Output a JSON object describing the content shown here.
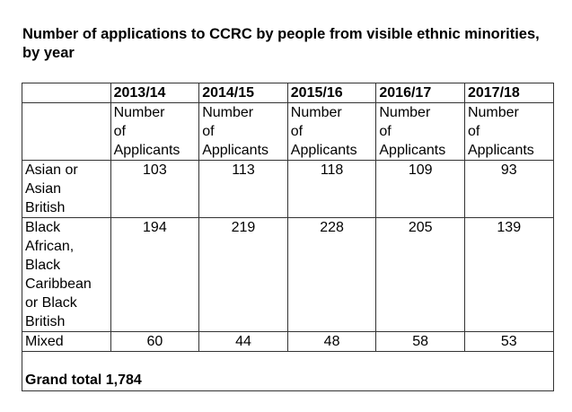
{
  "title": "Number of applications to CCRC by people from visible ethnic minorities, by year",
  "table": {
    "years": [
      "2013/14",
      "2014/15",
      "2015/16",
      "2016/17",
      "2017/18"
    ],
    "subheader": [
      "Number",
      "of",
      "Applicants"
    ],
    "rows": [
      {
        "label": [
          "Asian or",
          "Asian",
          "British"
        ],
        "values": [
          "103",
          "113",
          "118",
          "109",
          "93"
        ]
      },
      {
        "label": [
          "Black",
          "African,",
          "Black",
          "Caribbean",
          "or Black",
          "British"
        ],
        "values": [
          "194",
          "219",
          "228",
          "205",
          "139"
        ]
      },
      {
        "label": [
          "Mixed"
        ],
        "values": [
          "60",
          "44",
          "48",
          "58",
          "53"
        ]
      }
    ],
    "grand_total": "Grand total 1,784"
  }
}
